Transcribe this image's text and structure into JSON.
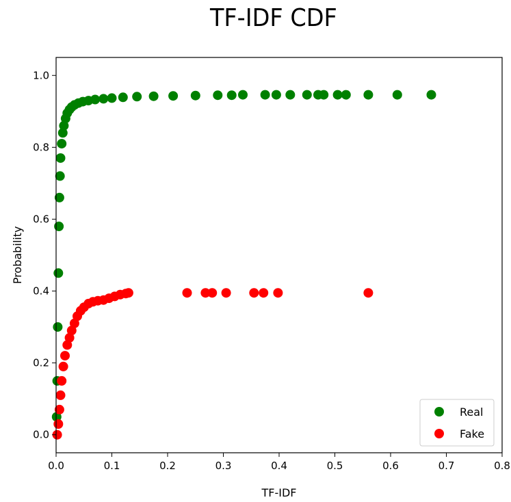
{
  "chart_data": {
    "type": "scatter",
    "title": "TF-IDF CDF",
    "xlabel": "TF-IDF",
    "ylabel": "Probability",
    "xlim": [
      0.0,
      0.8
    ],
    "ylim": [
      -0.05,
      1.05
    ],
    "xticks": [
      "0.0",
      "0.1",
      "0.2",
      "0.3",
      "0.4",
      "0.5",
      "0.6",
      "0.7",
      "0.8"
    ],
    "yticks": [
      "0.0",
      "0.2",
      "0.4",
      "0.6",
      "0.8",
      "1.0"
    ],
    "legend_position": "bottom-right",
    "grid": false,
    "series": [
      {
        "name": "Real",
        "color": "#008000",
        "points": [
          [
            0.001,
            0.05
          ],
          [
            0.002,
            0.15
          ],
          [
            0.003,
            0.3
          ],
          [
            0.004,
            0.45
          ],
          [
            0.005,
            0.58
          ],
          [
            0.006,
            0.66
          ],
          [
            0.007,
            0.72
          ],
          [
            0.008,
            0.77
          ],
          [
            0.01,
            0.81
          ],
          [
            0.012,
            0.84
          ],
          [
            0.014,
            0.86
          ],
          [
            0.017,
            0.88
          ],
          [
            0.02,
            0.895
          ],
          [
            0.024,
            0.905
          ],
          [
            0.028,
            0.912
          ],
          [
            0.033,
            0.918
          ],
          [
            0.04,
            0.923
          ],
          [
            0.048,
            0.927
          ],
          [
            0.058,
            0.93
          ],
          [
            0.07,
            0.933
          ],
          [
            0.085,
            0.935
          ],
          [
            0.1,
            0.937
          ],
          [
            0.12,
            0.939
          ],
          [
            0.145,
            0.941
          ],
          [
            0.175,
            0.942
          ],
          [
            0.21,
            0.943
          ],
          [
            0.25,
            0.944
          ],
          [
            0.29,
            0.945
          ],
          [
            0.315,
            0.945
          ],
          [
            0.335,
            0.946
          ],
          [
            0.375,
            0.946
          ],
          [
            0.395,
            0.946
          ],
          [
            0.42,
            0.946
          ],
          [
            0.45,
            0.946
          ],
          [
            0.47,
            0.946
          ],
          [
            0.48,
            0.946
          ],
          [
            0.505,
            0.946
          ],
          [
            0.52,
            0.946
          ],
          [
            0.56,
            0.946
          ],
          [
            0.612,
            0.946
          ],
          [
            0.673,
            0.946
          ]
        ]
      },
      {
        "name": "Fake",
        "color": "#ff0000",
        "points": [
          [
            0.002,
            0.0
          ],
          [
            0.004,
            0.03
          ],
          [
            0.006,
            0.07
          ],
          [
            0.008,
            0.11
          ],
          [
            0.01,
            0.15
          ],
          [
            0.013,
            0.19
          ],
          [
            0.016,
            0.22
          ],
          [
            0.02,
            0.25
          ],
          [
            0.024,
            0.27
          ],
          [
            0.028,
            0.29
          ],
          [
            0.033,
            0.31
          ],
          [
            0.038,
            0.33
          ],
          [
            0.044,
            0.345
          ],
          [
            0.05,
            0.355
          ],
          [
            0.058,
            0.365
          ],
          [
            0.066,
            0.37
          ],
          [
            0.075,
            0.373
          ],
          [
            0.085,
            0.375
          ],
          [
            0.095,
            0.38
          ],
          [
            0.105,
            0.385
          ],
          [
            0.115,
            0.39
          ],
          [
            0.125,
            0.393
          ],
          [
            0.13,
            0.395
          ],
          [
            0.235,
            0.395
          ],
          [
            0.268,
            0.395
          ],
          [
            0.28,
            0.395
          ],
          [
            0.305,
            0.395
          ],
          [
            0.355,
            0.395
          ],
          [
            0.372,
            0.395
          ],
          [
            0.398,
            0.395
          ],
          [
            0.56,
            0.395
          ]
        ]
      }
    ]
  }
}
